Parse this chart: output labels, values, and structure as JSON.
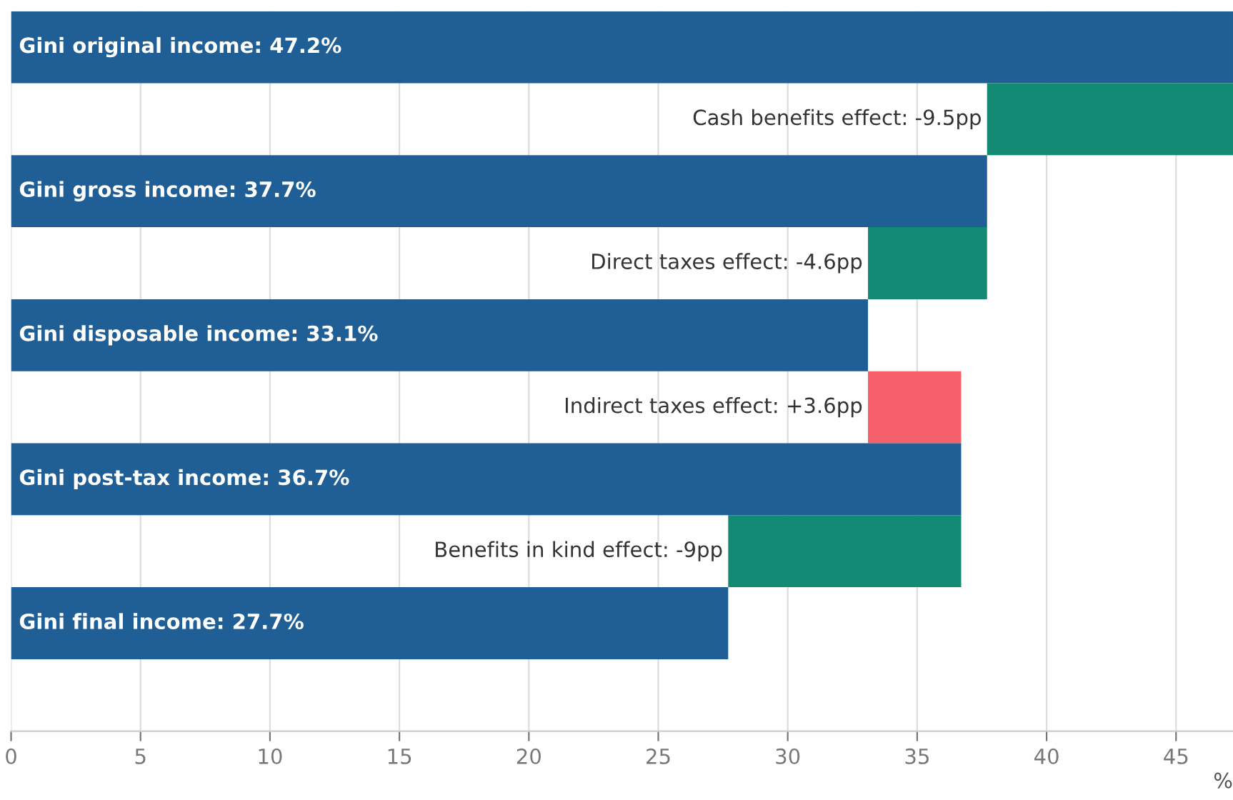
{
  "chart_data": {
    "type": "bar",
    "orientation": "horizontal",
    "xlabel": "%",
    "categories": [
      null,
      null,
      null,
      null,
      null,
      null,
      null,
      null,
      null
    ],
    "values": [
      47.2,
      -9.5,
      37.7,
      -4.6,
      33.1,
      3.6,
      36.7,
      -9,
      27.7
    ],
    "base": [
      0,
      47.2,
      0,
      37.7,
      0,
      33.1,
      0,
      36.7,
      0
    ],
    "colors": [
      "#1f5f96",
      "#138a74",
      "#1f5f96",
      "#138a74",
      "#1f5f96",
      "#f5606a",
      "#1f5f96",
      "#138a74",
      "#1f5f96"
    ],
    "value_labels": [
      "Gini original income: 47.2%",
      "Cash benefits effect: -9.5pp",
      "Gini gross income: 37.7%",
      "Direct taxes effect: -4.6pp",
      "Gini disposable income: 33.1%",
      "Indirect taxes effect: +3.6pp",
      "Gini post-tax income: 36.7%",
      "Benefits in kind effect: -9pp",
      "Gini final income: 27.7%"
    ],
    "xlim": [
      0,
      47.2
    ],
    "xticks": [
      0,
      5,
      10,
      15,
      20,
      25,
      30,
      35,
      40,
      45
    ],
    "grid": "x"
  }
}
